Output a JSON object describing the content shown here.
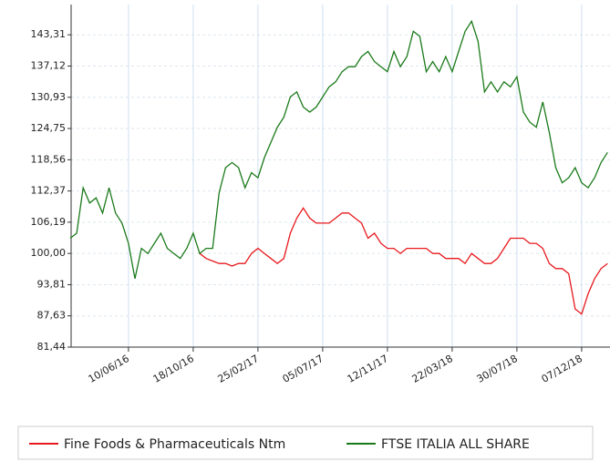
{
  "chart_data": {
    "type": "line",
    "categories": [
      null,
      null,
      null,
      null,
      null,
      null,
      null,
      null,
      null,
      "10/06/16",
      null,
      null,
      null,
      null,
      null,
      null,
      null,
      null,
      null,
      "18/10/16",
      null,
      null,
      null,
      null,
      null,
      null,
      null,
      null,
      null,
      "25/02/17",
      null,
      null,
      null,
      null,
      null,
      null,
      null,
      null,
      null,
      "05/07/17",
      null,
      null,
      null,
      null,
      null,
      null,
      null,
      null,
      null,
      "12/11/17",
      null,
      null,
      null,
      null,
      null,
      null,
      null,
      null,
      null,
      "22/03/18",
      null,
      null,
      null,
      null,
      null,
      null,
      null,
      null,
      null,
      "30/07/18",
      null,
      null,
      null,
      null,
      null,
      null,
      null,
      null,
      null,
      "07/12/18",
      null,
      null,
      null,
      null
    ],
    "series": [
      {
        "name": "Fine Foods & Pharmaceuticals Ntm",
        "color": "#e8181c",
        "values": [
          null,
          null,
          null,
          null,
          null,
          null,
          null,
          null,
          null,
          null,
          null,
          null,
          null,
          null,
          null,
          null,
          null,
          null,
          null,
          null,
          100,
          99,
          98.5,
          98,
          98,
          97.5,
          98,
          98,
          100,
          101,
          100,
          99,
          98,
          99,
          104,
          107,
          109,
          107,
          106,
          106,
          106,
          107,
          108,
          108,
          107,
          106,
          103,
          104,
          102,
          101,
          101,
          100,
          101,
          101,
          101,
          101,
          100,
          100,
          99,
          99,
          99,
          98,
          100,
          99,
          98,
          98,
          99,
          101,
          103,
          103,
          103,
          102,
          102,
          101,
          98,
          97,
          97,
          96,
          89,
          88,
          92,
          95,
          97,
          98
        ]
      },
      {
        "name": "FTSE ITALIA ALL SHARE",
        "color": "#1a7a1a",
        "values": [
          103,
          104,
          113,
          110,
          111,
          108,
          113,
          108,
          106,
          102,
          95,
          101,
          100,
          102,
          104,
          101,
          100,
          99,
          101,
          104,
          100,
          101,
          101,
          112,
          117,
          118,
          117,
          113,
          116,
          115,
          119,
          122,
          125,
          127,
          131,
          132,
          129,
          128,
          129,
          131,
          133,
          134,
          136,
          137,
          137,
          139,
          140,
          138,
          137,
          136,
          140,
          137,
          139,
          144,
          143,
          136,
          138,
          136,
          139,
          136,
          140,
          144,
          146,
          142,
          132,
          134,
          132,
          134,
          133,
          135,
          128,
          126,
          125,
          130,
          124,
          117,
          114,
          115,
          117,
          114,
          113,
          115,
          118,
          120
        ]
      }
    ],
    "ylim": [
      81.44,
      149.3
    ],
    "yticks": [
      {
        "value": 81.44,
        "label": "81,44"
      },
      {
        "value": 87.63,
        "label": "87,63"
      },
      {
        "value": 93.81,
        "label": "93,81"
      },
      {
        "value": 100,
        "label": "100,00"
      },
      {
        "value": 106.19,
        "label": "106,19"
      },
      {
        "value": 112.37,
        "label": "112,37"
      },
      {
        "value": 118.56,
        "label": "118,56"
      },
      {
        "value": 124.75,
        "label": "124,75"
      },
      {
        "value": 130.93,
        "label": "130,93"
      },
      {
        "value": 137.12,
        "label": "137,12"
      },
      {
        "value": 143.31,
        "label": "143,31"
      }
    ],
    "grid": true,
    "legend": "bottom"
  }
}
